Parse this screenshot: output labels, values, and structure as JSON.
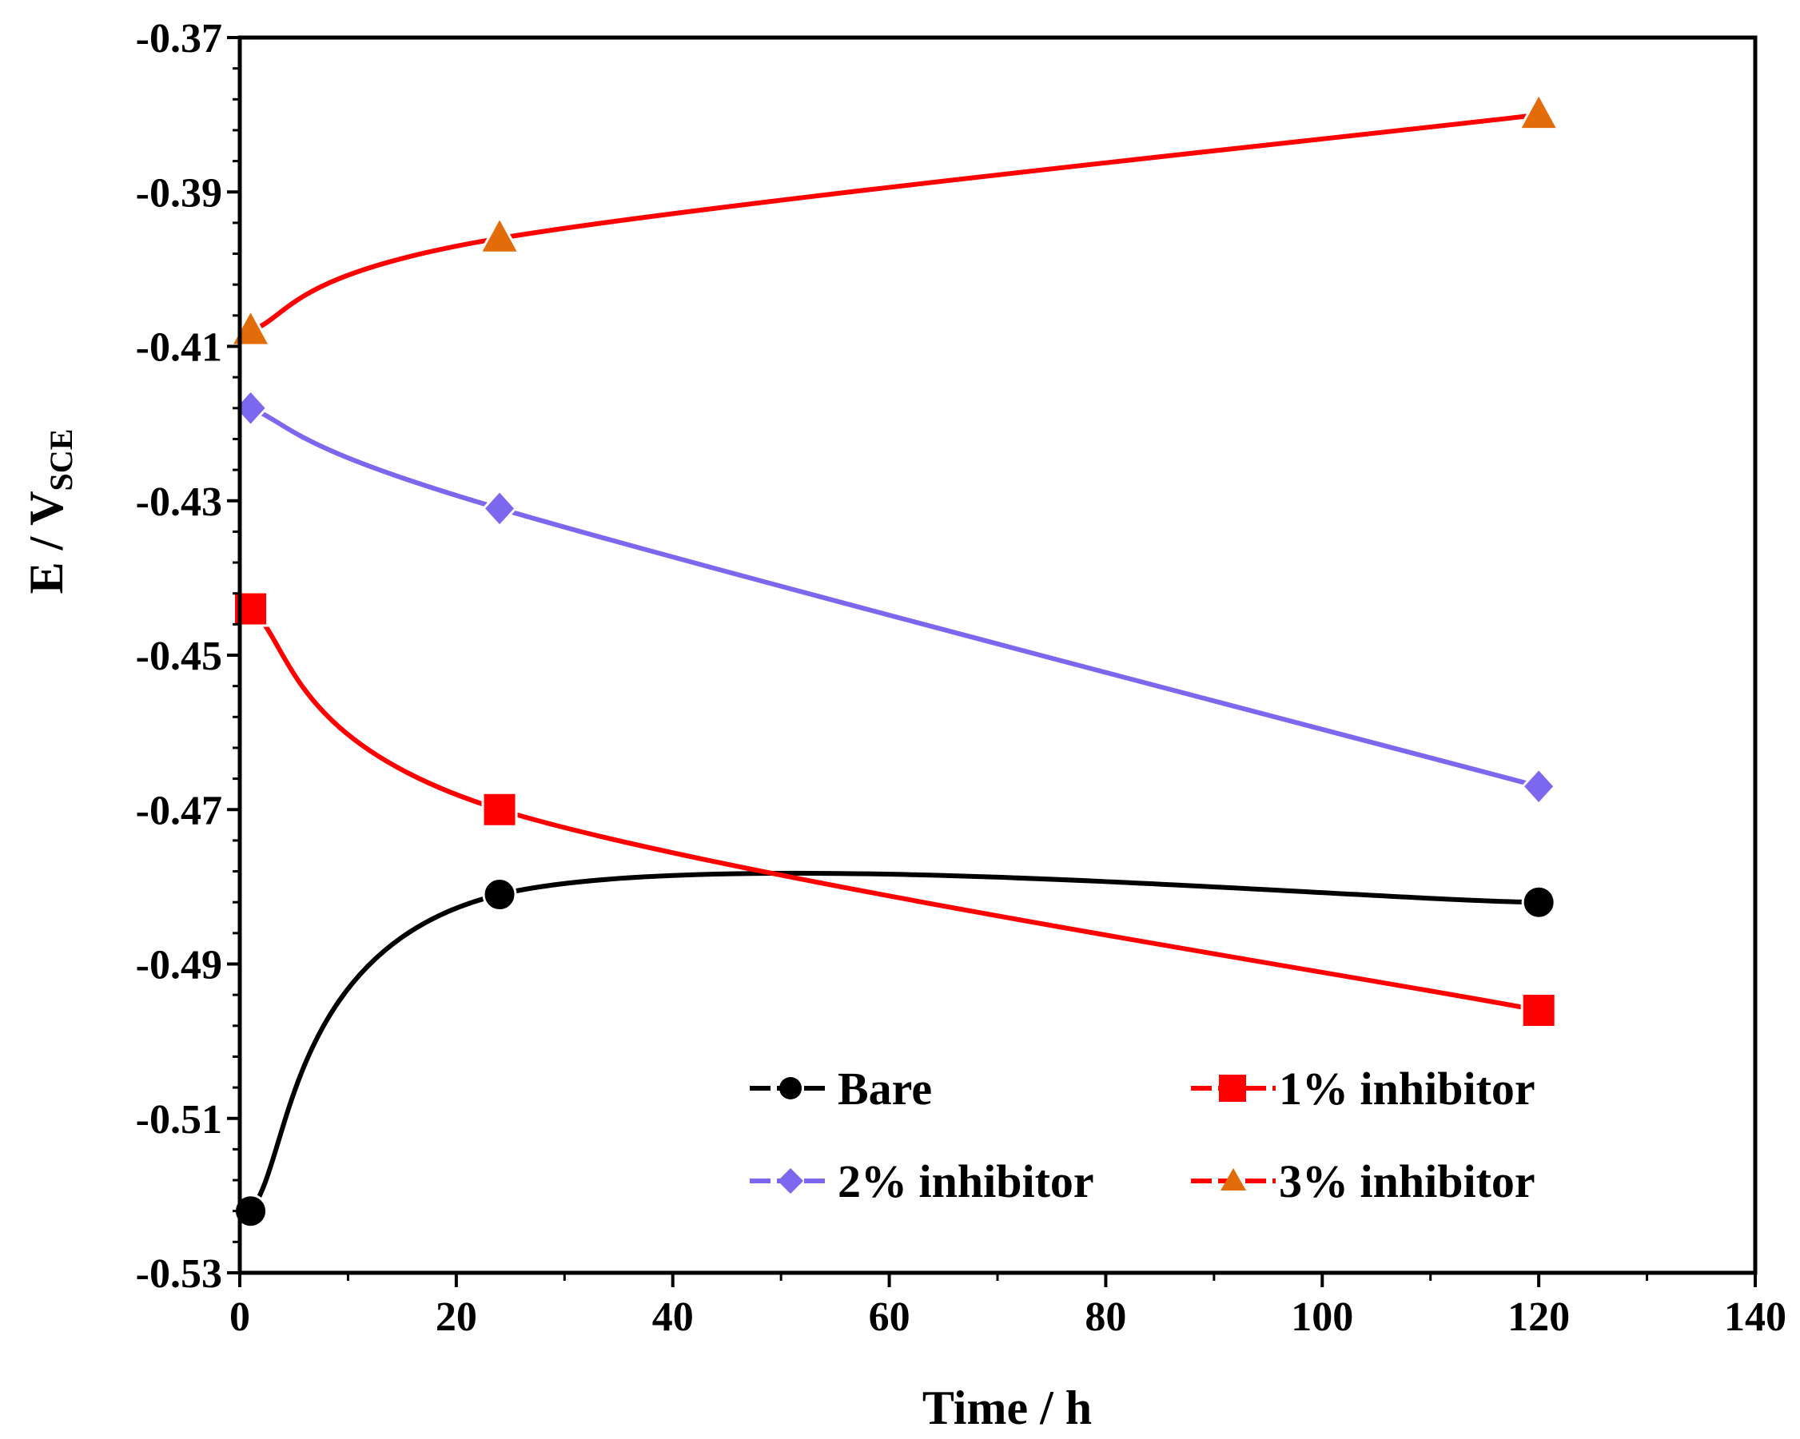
{
  "chart_data": {
    "type": "line",
    "title": "",
    "xlabel": "Time  / h",
    "ylabel_main": "E / V",
    "ylabel_sub": "SCE",
    "xlim": [
      0,
      140
    ],
    "ylim": [
      -0.53,
      -0.37
    ],
    "xticks": [
      0,
      20,
      40,
      60,
      80,
      100,
      120,
      140
    ],
    "xtick_labels": [
      "0",
      "20",
      "40",
      "60",
      "80",
      "100",
      "120",
      "140"
    ],
    "yticks": [
      -0.37,
      -0.39,
      -0.41,
      -0.43,
      -0.45,
      -0.47,
      -0.49,
      -0.51,
      -0.53
    ],
    "ytick_labels": [
      "-0.37",
      "-0.39",
      "-0.41",
      "-0.43",
      "-0.45",
      "-0.47",
      "-0.49",
      "-0.51",
      "-0.53"
    ],
    "grid": false,
    "legend_position": "lower-right",
    "series": [
      {
        "name": "Bare",
        "marker": "circle",
        "line_color": "#000000",
        "marker_color": "#000000",
        "x": [
          1,
          24,
          120
        ],
        "y": [
          -0.522,
          -0.481,
          -0.482
        ]
      },
      {
        "name": "1% inhibitor",
        "marker": "square",
        "line_color": "#ff0000",
        "marker_color": "#ff0000",
        "x": [
          1,
          24,
          120
        ],
        "y": [
          -0.444,
          -0.47,
          -0.496
        ]
      },
      {
        "name": "2% inhibitor",
        "marker": "diamond",
        "line_color": "#7b68ee",
        "marker_color": "#7b68ee",
        "x": [
          1,
          24,
          120
        ],
        "y": [
          -0.418,
          -0.431,
          -0.467
        ]
      },
      {
        "name": "3% inhibitor",
        "marker": "triangle",
        "line_color": "#ff0000",
        "marker_color": "#e36c0a",
        "x": [
          1,
          24,
          120
        ],
        "y": [
          -0.408,
          -0.396,
          -0.38
        ]
      }
    ]
  }
}
